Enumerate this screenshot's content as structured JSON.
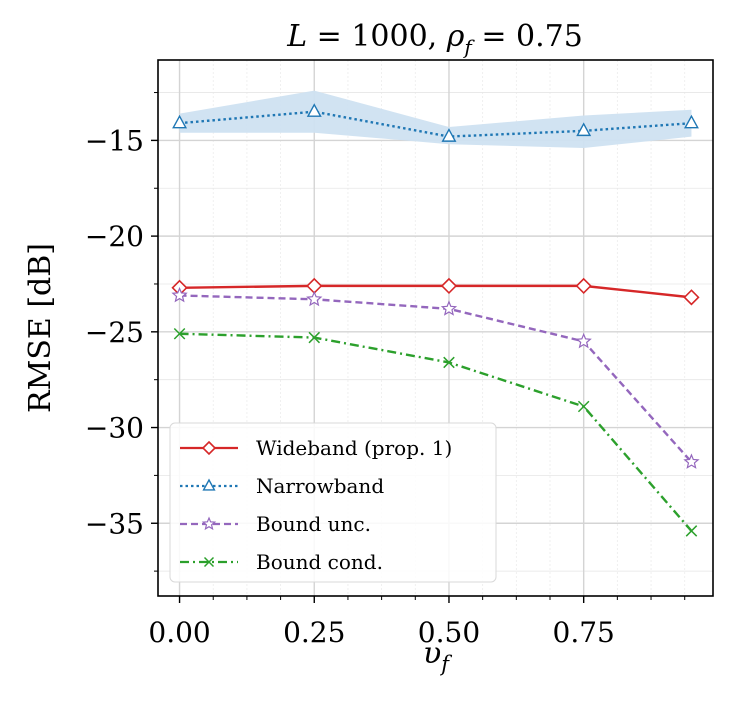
{
  "chart_data": {
    "type": "line",
    "title": "L = 1000, ρ_f = 0.75",
    "xlabel": "υ_f",
    "ylabel": "RMSE [dB]",
    "xlim": [
      -0.04,
      0.99
    ],
    "ylim": [
      -38.8,
      -10.8
    ],
    "x_ticks": [
      0.0,
      0.25,
      0.5,
      0.75
    ],
    "x_tick_labels": [
      "0.00",
      "0.25",
      "0.50",
      "0.75"
    ],
    "y_ticks": [
      -15,
      -20,
      -25,
      -30,
      -35
    ],
    "y_tick_labels": [
      "−15",
      "−20",
      "−25",
      "−30",
      "−35"
    ],
    "grid": true,
    "legend_position": "lower-left",
    "x": [
      0.0,
      0.25,
      0.5,
      0.75,
      0.95
    ],
    "series": [
      {
        "name": "Wideband (prop. 1)",
        "values": [
          -22.7,
          -22.6,
          -22.6,
          -22.6,
          -23.2
        ],
        "color": "#d62728",
        "dash": "solid",
        "marker": "diamond"
      },
      {
        "name": "Narrowband",
        "values": [
          -14.1,
          -13.5,
          -14.8,
          -14.5,
          -14.1
        ],
        "band_low": [
          -14.6,
          -14.6,
          -15.2,
          -15.4,
          -14.8
        ],
        "band_high": [
          -13.6,
          -12.4,
          -14.3,
          -13.7,
          -13.4
        ],
        "color": "#1f77b4",
        "band_color": "#cfe1f1",
        "dash": "dotted",
        "marker": "triangle"
      },
      {
        "name": "Bound unc.",
        "values": [
          -23.1,
          -23.3,
          -23.8,
          -25.5,
          -31.8
        ],
        "color": "#9467bd",
        "dash": "dashed",
        "marker": "star"
      },
      {
        "name": "Bound cond.",
        "values": [
          -25.1,
          -25.3,
          -26.6,
          -28.9,
          -35.4
        ],
        "color": "#2ca02c",
        "dash": "dashdot",
        "marker": "x"
      }
    ]
  }
}
